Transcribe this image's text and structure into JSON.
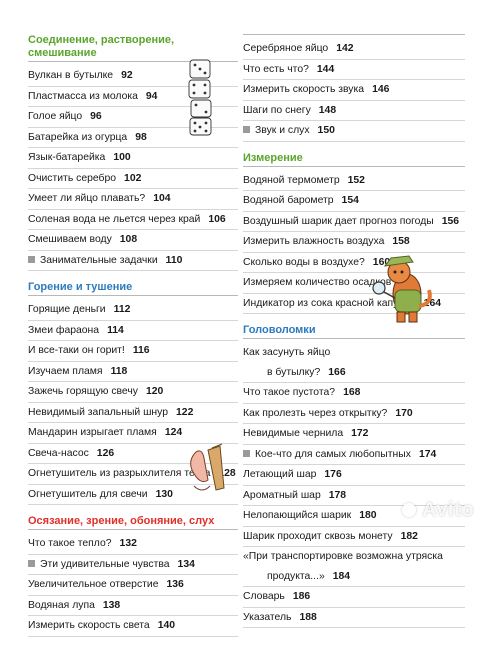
{
  "left": {
    "s1": {
      "title": "Соединение, растворение, смешивание",
      "entries": [
        {
          "text": "Вулкан в бутылке",
          "page": "92"
        },
        {
          "text": "Пластмасса из молока",
          "page": "94"
        },
        {
          "text": "Голое яйцо",
          "page": "96"
        },
        {
          "text": "Батарейка из огурца",
          "page": "98"
        },
        {
          "text": "Язык-батарейка",
          "page": "100"
        },
        {
          "text": "Очистить серебро",
          "page": "102"
        },
        {
          "text": "Умеет ли яйцо плавать?",
          "page": "104"
        },
        {
          "text": "Соленая вода не льется через край",
          "page": "106"
        },
        {
          "text": "Смешиваем воду",
          "page": "108"
        },
        {
          "text": "Занимательные задачки",
          "page": "110"
        }
      ]
    },
    "s2": {
      "title": "Горение и тушение",
      "entries": [
        {
          "text": "Горящие деньги",
          "page": "112"
        },
        {
          "text": "Змеи фараона",
          "page": "114"
        },
        {
          "text": "И все-таки он горит!",
          "page": "116"
        },
        {
          "text": "Изучаем пламя",
          "page": "118"
        },
        {
          "text": "Зажечь горящую свечу",
          "page": "120"
        },
        {
          "text": "Невидимый запальный шнур",
          "page": "122"
        },
        {
          "text": "Мандарин изрыгает пламя",
          "page": "124"
        },
        {
          "text": "Свеча-насос",
          "page": "126"
        },
        {
          "text": "Огнетушитель из разрыхлителя теста",
          "page": "128"
        },
        {
          "text": "Огнетушитель для свечи",
          "page": "130"
        }
      ]
    },
    "s3": {
      "title": "Осязание, зрение, обоняние, слух",
      "entries": [
        {
          "text": "Что такое тепло?",
          "page": "132"
        },
        {
          "text": "Эти удивительные чувства",
          "page": "134"
        },
        {
          "text": "Увеличительное отверстие",
          "page": "136"
        },
        {
          "text": "Водяная лупа",
          "page": "138"
        },
        {
          "text": "Измерить скорость света",
          "page": "140"
        }
      ]
    }
  },
  "right": {
    "s0": {
      "entries": [
        {
          "text": "Серебряное яйцо",
          "page": "142"
        },
        {
          "text": "Что есть что?",
          "page": "144"
        },
        {
          "text": "Измерить скорость звука",
          "page": "146"
        },
        {
          "text": "Шаги по снегу",
          "page": "148"
        },
        {
          "text": "Звук и слух",
          "page": "150"
        }
      ]
    },
    "s1": {
      "title": "Измерение",
      "entries": [
        {
          "text": "Водяной термометр",
          "page": "152"
        },
        {
          "text": "Водяной барометр",
          "page": "154"
        },
        {
          "text": "Воздушный шарик дает прогноз погоды",
          "page": "156"
        },
        {
          "text": "Измерить влажность воздуха",
          "page": "158"
        },
        {
          "text": "Сколько воды в воздухе?",
          "page": "160"
        },
        {
          "text": "Измеряем количество осадков",
          "page": "162"
        },
        {
          "text": "Индикатор из сока красной капусты",
          "page": "164"
        }
      ]
    },
    "s2": {
      "title": "Головоломки",
      "e0a": "Как засунуть яйцо",
      "e0b": "в бутылку?",
      "e0p": "166",
      "entries": [
        {
          "text": "Что такое пустота?",
          "page": "168"
        },
        {
          "text": "Как пролезть через открытку?",
          "page": "170"
        },
        {
          "text": "Невидимые чернила",
          "page": "172"
        },
        {
          "text": "Кое-что для самых любопытных",
          "page": "174"
        },
        {
          "text": "Летающий шар",
          "page": "176"
        },
        {
          "text": "Ароматный шар",
          "page": "178"
        },
        {
          "text": "Нелопающийся шарик",
          "page": "180"
        },
        {
          "text": "Шарик проходит сквозь монету",
          "page": "182"
        }
      ],
      "q1": "«При транспортировке возможна утряска",
      "q2": "продукта...»",
      "qp": "184",
      "tail": [
        {
          "text": "Словарь",
          "page": "186"
        },
        {
          "text": "Указатель",
          "page": "188"
        }
      ]
    }
  },
  "watermark": "Avito"
}
